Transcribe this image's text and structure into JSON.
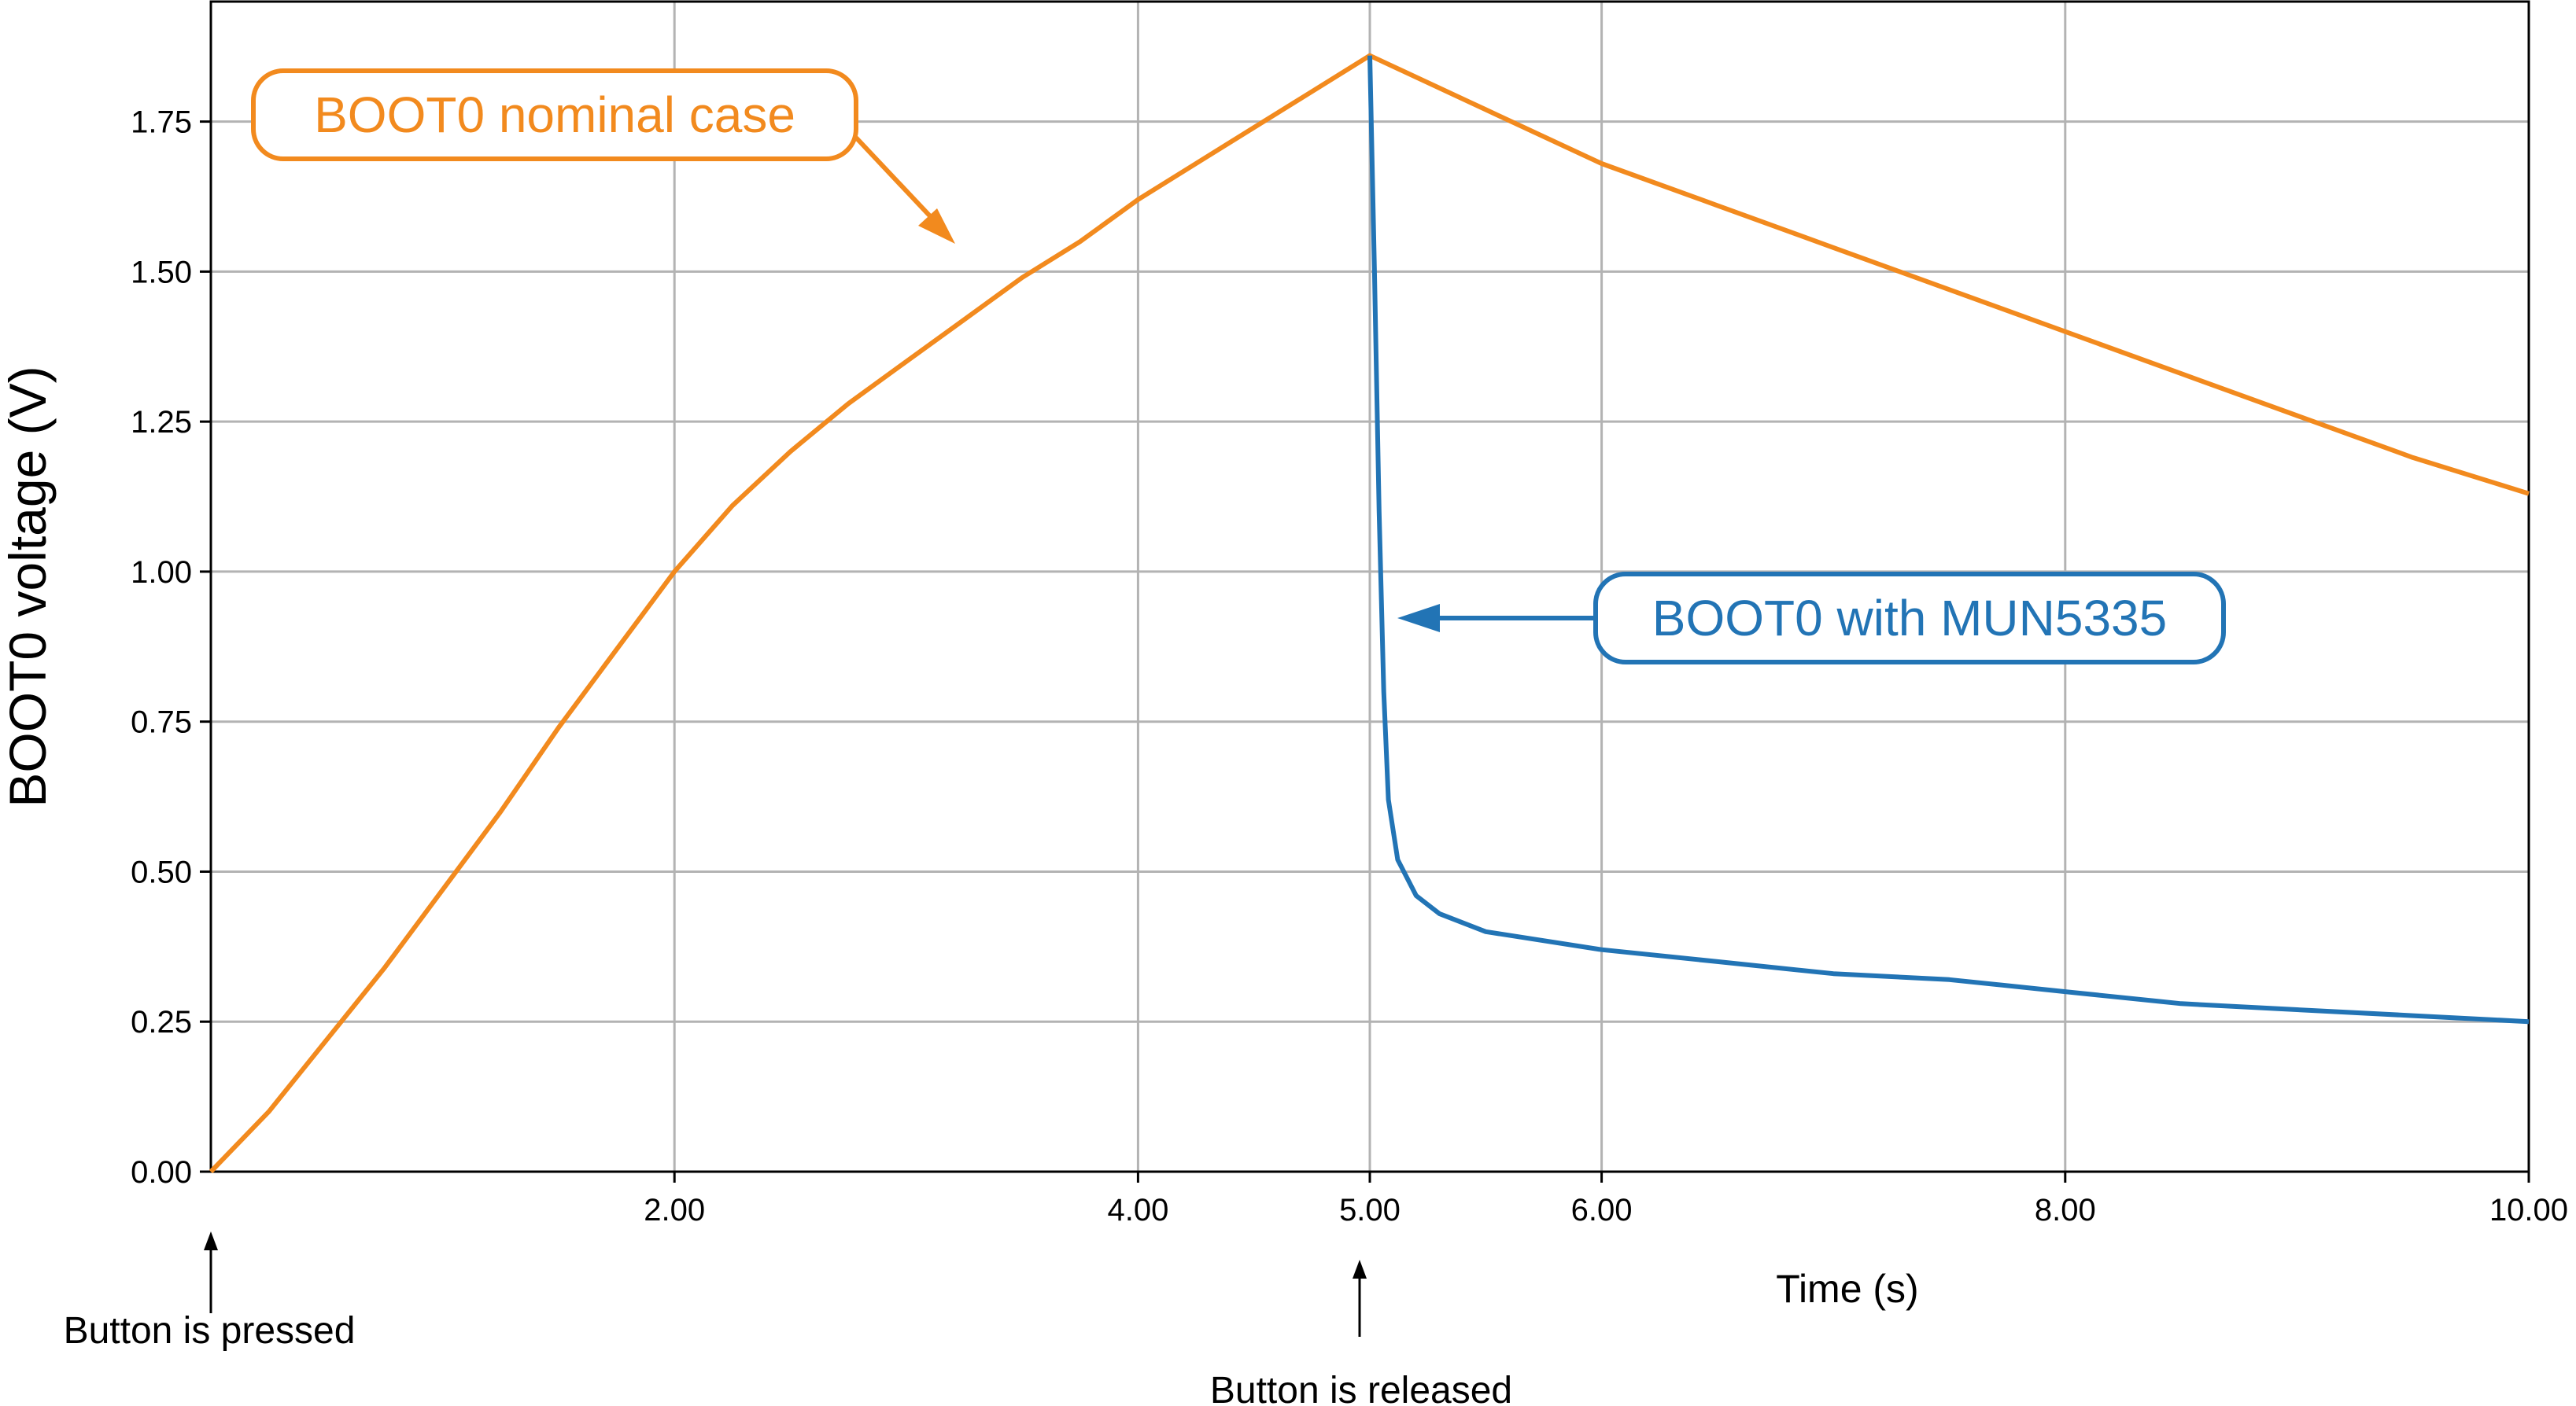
{
  "chart_data": {
    "type": "line",
    "xlabel": "Time (s)",
    "ylabel": "BOOT0 voltage (V)",
    "xlim": [
      0,
      10
    ],
    "ylim": [
      0,
      1.95
    ],
    "grid": true,
    "x_ticks": [
      2,
      4,
      5,
      6,
      8,
      10
    ],
    "x_tick_labels": [
      "2.00",
      "4.00",
      "5.00",
      "6.00",
      "8.00",
      "10.00"
    ],
    "y_ticks": [
      0,
      0.25,
      0.5,
      0.75,
      1.0,
      1.25,
      1.5,
      1.75
    ],
    "y_tick_labels": [
      "0.00",
      "0.25",
      "0.50",
      "0.75",
      "1.00",
      "1.25",
      "1.50",
      "1.75"
    ],
    "series": [
      {
        "name": "BOOT0 nominal case",
        "color": "#f28a1e",
        "points": [
          [
            0,
            0
          ],
          [
            0.25,
            0.1
          ],
          [
            0.5,
            0.22
          ],
          [
            0.75,
            0.34
          ],
          [
            1.0,
            0.47
          ],
          [
            1.25,
            0.6
          ],
          [
            1.5,
            0.74
          ],
          [
            1.75,
            0.87
          ],
          [
            2.0,
            1.0
          ],
          [
            2.25,
            1.11
          ],
          [
            2.5,
            1.2
          ],
          [
            2.75,
            1.28
          ],
          [
            3.0,
            1.35
          ],
          [
            3.25,
            1.42
          ],
          [
            3.5,
            1.49
          ],
          [
            3.75,
            1.55
          ],
          [
            4.0,
            1.62
          ],
          [
            4.25,
            1.68
          ],
          [
            4.5,
            1.74
          ],
          [
            4.75,
            1.8
          ],
          [
            5.0,
            1.86
          ],
          [
            5.5,
            1.77
          ],
          [
            6.0,
            1.68
          ],
          [
            6.5,
            1.61
          ],
          [
            7.0,
            1.54
          ],
          [
            7.5,
            1.47
          ],
          [
            8.0,
            1.4
          ],
          [
            8.5,
            1.33
          ],
          [
            9.0,
            1.26
          ],
          [
            9.5,
            1.19
          ],
          [
            10.0,
            1.13
          ]
        ]
      },
      {
        "name": "BOOT0 with MUN5335",
        "color": "#2274b5",
        "points": [
          [
            5.0,
            1.86
          ],
          [
            5.02,
            1.5
          ],
          [
            5.04,
            1.1
          ],
          [
            5.06,
            0.8
          ],
          [
            5.08,
            0.62
          ],
          [
            5.12,
            0.52
          ],
          [
            5.2,
            0.46
          ],
          [
            5.3,
            0.43
          ],
          [
            5.5,
            0.4
          ],
          [
            6.0,
            0.37
          ],
          [
            6.5,
            0.35
          ],
          [
            7.0,
            0.33
          ],
          [
            7.5,
            0.32
          ],
          [
            8.0,
            0.3
          ],
          [
            8.5,
            0.28
          ],
          [
            9.0,
            0.27
          ],
          [
            9.5,
            0.26
          ],
          [
            10.0,
            0.25
          ]
        ]
      }
    ],
    "annotations": [
      {
        "text": "BOOT0 nominal case",
        "color": "#f28a1e"
      },
      {
        "text": "BOOT0 with MUN5335",
        "color": "#2274b5"
      },
      {
        "text": "Button is pressed",
        "x": 0
      },
      {
        "text": "Button is released",
        "x": 5
      }
    ]
  }
}
